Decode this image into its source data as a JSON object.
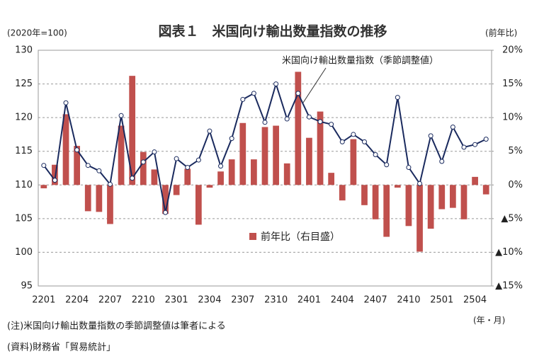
{
  "chart_data": {
    "type": "bar-line",
    "title": "図表１　米国向け輸出数量指数の推移",
    "y_label": "(2020年=100)",
    "y2_label": "(前年比)",
    "x_label": "(年・月)",
    "notes": [
      "(注)米国向け輸出数量指数の季節調整値は筆者による",
      "(資料)財務省「貿易統計」"
    ],
    "categories": [
      "2201",
      null,
      null,
      "2204",
      null,
      null,
      "2207",
      null,
      null,
      "2210",
      null,
      null,
      "2301",
      null,
      null,
      "2304",
      null,
      null,
      "2307",
      null,
      null,
      "2310",
      null,
      null,
      "2401",
      null,
      null,
      "2404",
      null,
      null,
      "2407",
      null,
      null,
      "2410",
      null,
      null,
      "2501",
      null,
      null,
      "2504",
      null
    ],
    "series": [
      {
        "name": "前年比（右目盛）",
        "type": "bar",
        "axis": "y2",
        "color": "#c0504d",
        "values": [
          -0.5,
          3.0,
          10.5,
          5.8,
          -3.9,
          -4.0,
          -5.8,
          8.8,
          16.2,
          4.9,
          2.3,
          -4.3,
          -1.5,
          2.4,
          -5.9,
          -0.4,
          2.0,
          3.8,
          9.2,
          3.8,
          8.6,
          8.8,
          3.2,
          16.8,
          7.0,
          10.9,
          1.8,
          -2.3,
          6.8,
          -3.0,
          -5.1,
          -7.7,
          -0.4,
          -6.1,
          -9.9,
          -6.5,
          -3.6,
          -3.4,
          -5.1,
          1.2,
          -1.4
        ]
      },
      {
        "name": "米国向け輸出数量指数（季節調整値）",
        "type": "line",
        "axis": "y",
        "color": "#1a2a5e",
        "values": [
          112.9,
          110.7,
          122.2,
          115.2,
          112.9,
          112.1,
          110.1,
          120.3,
          111.0,
          113.4,
          114.9,
          105.9,
          113.9,
          112.6,
          113.7,
          118.0,
          112.8,
          116.9,
          122.7,
          123.6,
          119.3,
          125.0,
          119.8,
          123.6,
          120.1,
          119.4,
          119.0,
          116.4,
          117.5,
          116.4,
          114.5,
          113.0,
          123.0,
          112.6,
          110.2,
          117.3,
          113.5,
          118.6,
          115.6,
          116.0,
          116.8
        ]
      }
    ],
    "ylim": [
      95,
      130
    ],
    "yticks": [
      95,
      100,
      105,
      110,
      115,
      120,
      125,
      130
    ],
    "y2lim": [
      -15,
      20
    ],
    "y2ticks": [
      {
        "value": -15,
        "label": "▲15%"
      },
      {
        "value": -10,
        "label": "▲10%"
      },
      {
        "value": -5,
        "label": "▲5%"
      },
      {
        "value": 0,
        "label": "0%"
      },
      {
        "value": 5,
        "label": "5%"
      },
      {
        "value": 10,
        "label": "10%"
      },
      {
        "value": 15,
        "label": "15%"
      },
      {
        "value": 20,
        "label": "20%"
      }
    ],
    "grid": true
  }
}
